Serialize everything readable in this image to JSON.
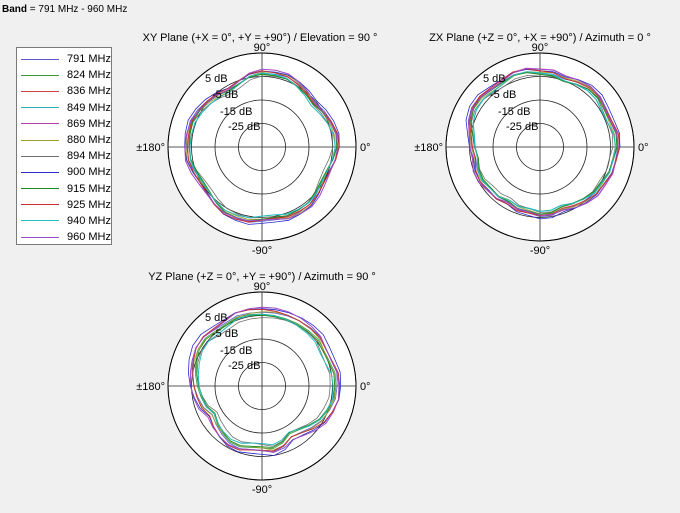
{
  "band": {
    "label": "Band",
    "value": " = 791 MHz - 960 MHz"
  },
  "legend": [
    {
      "name": "791 MHz",
      "color": "#5c5cc8"
    },
    {
      "name": "824 MHz",
      "color": "#3a9a3a"
    },
    {
      "name": "836 MHz",
      "color": "#d04040"
    },
    {
      "name": "849 MHz",
      "color": "#30b0b0"
    },
    {
      "name": "869 MHz",
      "color": "#b040b0"
    },
    {
      "name": "880 MHz",
      "color": "#a0a030"
    },
    {
      "name": "894 MHz",
      "color": "#707070"
    },
    {
      "name": "900 MHz",
      "color": "#2a2ad0"
    },
    {
      "name": "915 MHz",
      "color": "#208a20"
    },
    {
      "name": "925 MHz",
      "color": "#c83030"
    },
    {
      "name": "940 MHz",
      "color": "#20c0c0"
    },
    {
      "name": "960 MHz",
      "color": "#9a50c8"
    }
  ],
  "chart_data": [
    {
      "type": "polar-line",
      "title": "XY Plane (+X = 0°, +Y = +90°) / Elevation = 90 °",
      "angle_labels": {
        "top": "90°",
        "right": "0°",
        "bottom": "-90°",
        "left": "±180°"
      },
      "radial_ticks": [
        "5 dB",
        "-5 dB",
        "-15 dB",
        "-25 dB"
      ],
      "r_range": [
        -35,
        5
      ],
      "base_gain_db": [
        -3,
        -3,
        -4,
        -5,
        -6,
        -5,
        -4,
        -3,
        -3,
        -3,
        -4,
        -6,
        -7,
        -6,
        -5,
        -4,
        -3,
        -3,
        -3,
        -3,
        -4,
        -5,
        -5,
        -4,
        -3,
        -3,
        -3,
        -4,
        -4,
        -3,
        -3,
        -3,
        -4,
        -5,
        -5,
        -4
      ],
      "series_offsets_db": [
        0,
        -0.5,
        0.3,
        -1,
        0.6,
        -0.2,
        -1.4,
        0.9,
        -0.7,
        0.2,
        -1.1,
        0.5
      ]
    },
    {
      "type": "polar-line",
      "title": "ZX Plane (+Z = 0°, +X = +90°) / Azimuth = 0 °",
      "angle_labels": {
        "top": "90°",
        "right": "0°",
        "bottom": "-90°",
        "left": "±180°"
      },
      "radial_ticks": [
        "5 dB",
        "-5 dB",
        "-15 dB",
        "-25 dB"
      ],
      "r_range": [
        -35,
        5
      ],
      "base_gain_db": [
        -2,
        -2,
        -3,
        -3,
        -2,
        -2,
        -3,
        -4,
        -3,
        -3,
        -2,
        -2,
        -3,
        -3,
        -2,
        -2,
        -3,
        -5,
        -6,
        -7,
        -6,
        -6,
        -7,
        -7,
        -8,
        -7,
        -7,
        -6,
        -6,
        -7,
        -6,
        -5,
        -4,
        -4,
        -3,
        -3
      ],
      "series_offsets_db": [
        0,
        -0.6,
        0.4,
        -1.2,
        0.7,
        -0.3,
        -1.5,
        1,
        -0.8,
        0.3,
        -1,
        0.5
      ]
    },
    {
      "type": "polar-line",
      "title": "YZ Plane (+Z = 0°, +Y = +90°) / Azimuth = 90 °",
      "angle_labels": {
        "top": "90°",
        "right": "0°",
        "bottom": "-90°",
        "left": "±180°"
      },
      "radial_ticks": [
        "5 dB",
        "-5 dB",
        "-15 dB",
        "-25 dB"
      ],
      "r_range": [
        -35,
        5
      ],
      "base_gain_db": [
        -3,
        -3,
        -4,
        -4,
        -3,
        -3,
        -3,
        -3,
        -3,
        -3,
        -3,
        -3,
        -4,
        -4,
        -3,
        -3,
        -4,
        -5,
        -6,
        -7,
        -8,
        -10,
        -9,
        -8,
        -7,
        -7,
        -8,
        -8,
        -7,
        -8,
        -10,
        -9,
        -7,
        -5,
        -4,
        -3
      ],
      "series_offsets_db": [
        0,
        -1,
        0.5,
        -2,
        1,
        -0.5,
        -2.5,
        1.5,
        -1.5,
        0.5,
        -2,
        1
      ]
    }
  ]
}
